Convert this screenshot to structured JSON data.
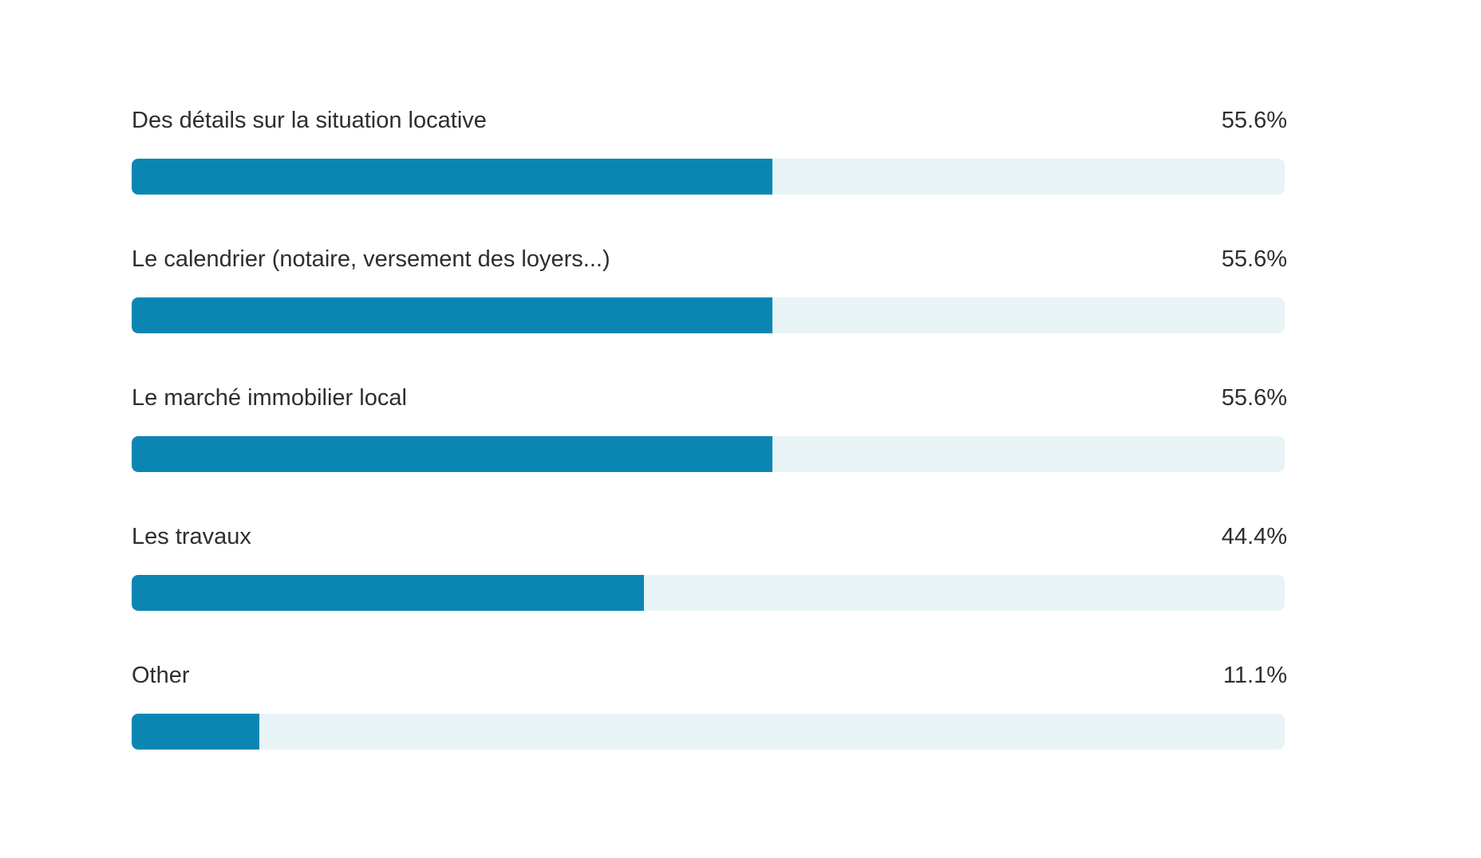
{
  "chart_data": {
    "type": "bar",
    "orientation": "horizontal",
    "categories": [
      "Des détails sur la situation locative",
      "Le calendrier (notaire, versement des loyers...)",
      "Le marché immobilier local",
      "Les travaux",
      "Other"
    ],
    "values": [
      55.6,
      55.6,
      55.6,
      44.4,
      11.1
    ],
    "value_labels": [
      "55.6%",
      "55.6%",
      "55.6%",
      "44.4%",
      "11.1%"
    ],
    "xlim": [
      0,
      100
    ],
    "title": "",
    "xlabel": "",
    "ylabel": "",
    "grid": false,
    "legend": "none"
  },
  "colors": {
    "bar_fill": "#0b86b3",
    "bar_track": "#e8f3f6",
    "text": "#2e2e2e"
  }
}
